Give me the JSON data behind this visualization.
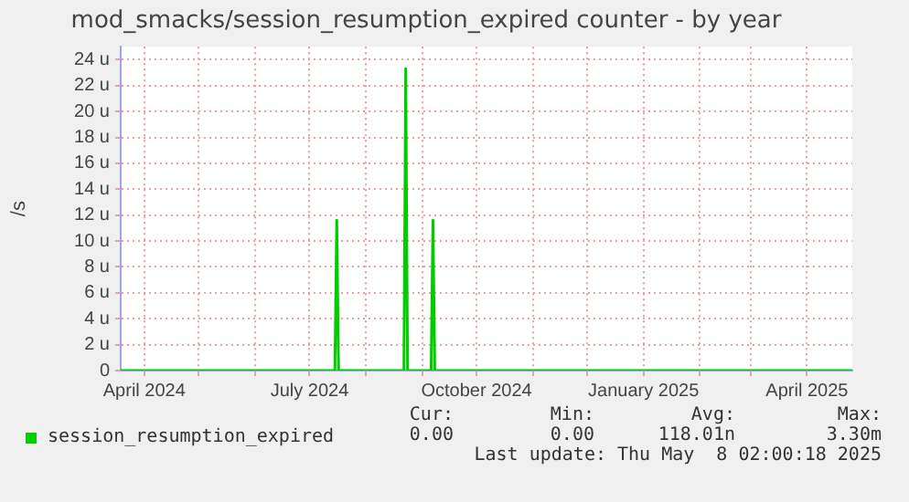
{
  "chart_data": {
    "type": "line",
    "title": "mod_smacks/session_resumption_expired counter - by year",
    "ylabel": "/s",
    "series": [
      {
        "name": "session_resumption_expired",
        "color": "#00cc00",
        "x": [
          "2024-03-19",
          "2024-07-15",
          "2024-07-16",
          "2024-07-17",
          "2024-08-22",
          "2024-08-23",
          "2024-08-24",
          "2024-09-06",
          "2024-09-07",
          "2024-09-08",
          "2025-04-26"
        ],
        "values": [
          0,
          0,
          11.6,
          0,
          0,
          23.3,
          0,
          0,
          11.6,
          0,
          0
        ]
      }
    ],
    "xlim": [
      "2024-03-19",
      "2025-04-26"
    ],
    "xticks": [
      {
        "value": "2024-04-01",
        "label": "April 2024"
      },
      {
        "value": "2024-05-01",
        "label": null
      },
      {
        "value": "2024-06-01",
        "label": null
      },
      {
        "value": "2024-07-01",
        "label": "July 2024"
      },
      {
        "value": "2024-08-01",
        "label": null
      },
      {
        "value": "2024-09-01",
        "label": null
      },
      {
        "value": "2024-10-01",
        "label": "October 2024"
      },
      {
        "value": "2024-11-01",
        "label": null
      },
      {
        "value": "2024-12-01",
        "label": null
      },
      {
        "value": "2025-01-01",
        "label": "January 2025"
      },
      {
        "value": "2025-02-01",
        "label": null
      },
      {
        "value": "2025-03-01",
        "label": null
      },
      {
        "value": "2025-04-01",
        "label": "April 2025"
      }
    ],
    "ylim": [
      0,
      25
    ],
    "yticks": [
      0,
      {
        "value": 2,
        "label": "2 u"
      },
      {
        "value": 4,
        "label": "4 u"
      },
      {
        "value": 6,
        "label": "6 u"
      },
      {
        "value": 8,
        "label": "8 u"
      },
      {
        "value": 10,
        "label": "10 u"
      },
      {
        "value": 12,
        "label": "12 u"
      },
      {
        "value": 14,
        "label": "14 u"
      },
      {
        "value": 16,
        "label": "16 u"
      },
      {
        "value": 18,
        "label": "18 u"
      },
      {
        "value": 20,
        "label": "20 u"
      },
      {
        "value": 22,
        "label": "22 u"
      },
      {
        "value": 24,
        "label": "24 u"
      }
    ],
    "grid": true,
    "legend": "bottom",
    "marker": "none",
    "line_style": "solid",
    "annotations": [
      "Cur:",
      "Min:",
      "Avg:",
      "Max:",
      "0.00",
      "0.00",
      "118.01n",
      "3.30m",
      "Last update: Thu May  8 02:00:18 2025"
    ]
  }
}
